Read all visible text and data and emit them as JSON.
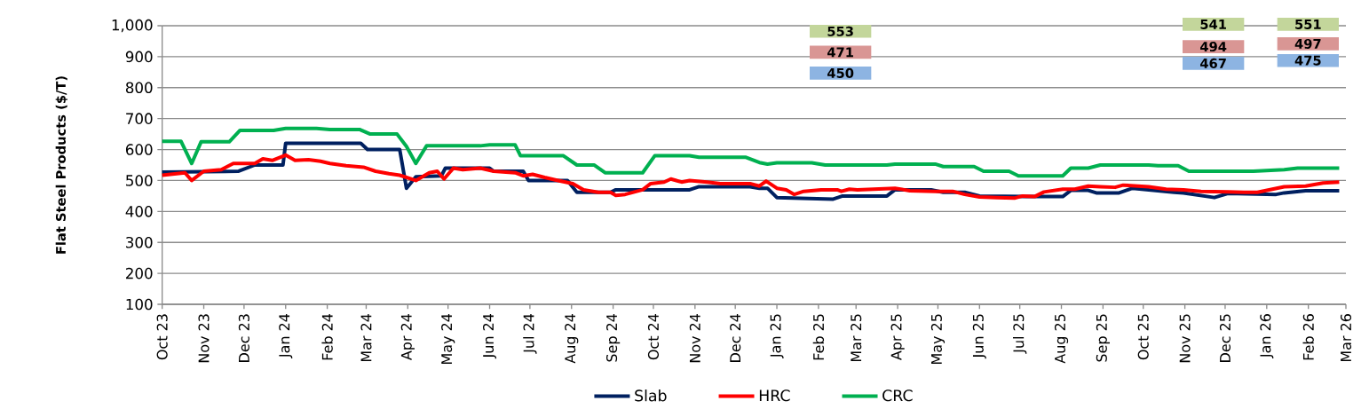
{
  "chart_data": {
    "type": "line",
    "ylabel": "Flat Steel Products ($/T)",
    "ylim": [
      100,
      1000
    ],
    "yticks": [
      100,
      200,
      300,
      400,
      500,
      600,
      700,
      800,
      900,
      {
        "value": 1000,
        "label": "1,000"
      }
    ],
    "xlim": [
      "2023-10-01",
      "2026-03-01"
    ],
    "xticks": [
      {
        "value": "2023-10-01",
        "label": "Oct 23"
      },
      {
        "value": "2023-11-01",
        "label": "Nov 23"
      },
      {
        "value": "2023-12-01",
        "label": "Dec 23"
      },
      {
        "value": "2024-01-01",
        "label": "Jan 24"
      },
      {
        "value": "2024-02-01",
        "label": "Feb 24"
      },
      {
        "value": "2024-03-01",
        "label": "Mar 24"
      },
      {
        "value": "2024-04-01",
        "label": "Apr 24"
      },
      {
        "value": "2024-05-01",
        "label": "May 24"
      },
      {
        "value": "2024-06-01",
        "label": "Jun 24"
      },
      {
        "value": "2024-07-01",
        "label": "Jul 24"
      },
      {
        "value": "2024-08-01",
        "label": "Aug 24"
      },
      {
        "value": "2024-09-01",
        "label": "Sep 24"
      },
      {
        "value": "2024-10-01",
        "label": "Oct 24"
      },
      {
        "value": "2024-11-01",
        "label": "Nov 24"
      },
      {
        "value": "2024-12-01",
        "label": "Dec 24"
      },
      {
        "value": "2025-01-01",
        "label": "Jan 25"
      },
      {
        "value": "2025-02-01",
        "label": "Feb 25"
      },
      {
        "value": "2025-03-01",
        "label": "Mar 25"
      },
      {
        "value": "2025-04-01",
        "label": "Apr 25"
      },
      {
        "value": "2025-05-01",
        "label": "May 25"
      },
      {
        "value": "2025-06-01",
        "label": "Jun 25"
      },
      {
        "value": "2025-07-01",
        "label": "Jul 25"
      },
      {
        "value": "2025-08-01",
        "label": "Aug 25"
      },
      {
        "value": "2025-09-01",
        "label": "Sep 25"
      },
      {
        "value": "2025-10-01",
        "label": "Oct 25"
      },
      {
        "value": "2025-11-01",
        "label": "Nov 25"
      },
      {
        "value": "2025-12-01",
        "label": "Dec 25"
      },
      {
        "value": "2026-01-01",
        "label": "Jan 26"
      },
      {
        "value": "2026-02-01",
        "label": "Feb 26"
      },
      {
        "value": "2026-03-01",
        "label": "Mar 26"
      }
    ],
    "grid": "y",
    "legend": "bottom",
    "marker": "none",
    "line_style": "solid",
    "series": [
      {
        "name": "Slab",
        "color": "#002060",
        "x": [
          "2023-10-01",
          "2023-11-27",
          "2023-12-09",
          "2023-12-30",
          "2024-01-01",
          "2024-02-26",
          "2024-03-02",
          "2024-03-26",
          "2024-03-31",
          "2024-04-07",
          "2024-04-26",
          "2024-04-29",
          "2024-06-01",
          "2024-06-04",
          "2024-06-26",
          "2024-06-30",
          "2024-07-29",
          "2024-08-05",
          "2024-08-30",
          "2024-09-03",
          "2024-10-28",
          "2024-11-04",
          "2024-12-12",
          "2024-12-19",
          "2024-12-25",
          "2025-01-01",
          "2025-02-12",
          "2025-02-19",
          "2025-03-24",
          "2025-03-30",
          "2025-04-26",
          "2025-05-05",
          "2025-05-21",
          "2025-06-01",
          "2025-07-06",
          "2025-08-02",
          "2025-08-08",
          "2025-08-21",
          "2025-08-27",
          "2025-09-13",
          "2025-09-23",
          "2025-10-24",
          "2025-10-31",
          "2025-11-23",
          "2025-12-03",
          "2026-01-08",
          "2026-01-14",
          "2026-01-30",
          "2026-02-24"
        ],
        "values": [
          527,
          530,
          550,
          550,
          620,
          620,
          600,
          600,
          475,
          512,
          515,
          540,
          540,
          530,
          530,
          500,
          500,
          462,
          462,
          470,
          470,
          480,
          480,
          475,
          475,
          445,
          440,
          450,
          450,
          470,
          470,
          462,
          462,
          450,
          448,
          448,
          468,
          468,
          460,
          460,
          475,
          462,
          460,
          445,
          458,
          455,
          460,
          467,
          467
        ]
      },
      {
        "name": "HRC",
        "color": "#ff0000",
        "x": [
          "2023-10-01",
          "2023-10-18",
          "2023-10-23",
          "2023-11-01",
          "2023-11-14",
          "2023-11-23",
          "2023-12-09",
          "2023-12-15",
          "2023-12-22",
          "2024-01-01",
          "2024-01-08",
          "2024-01-18",
          "2024-01-27",
          "2024-02-03",
          "2024-02-15",
          "2024-02-28",
          "2024-03-08",
          "2024-03-18",
          "2024-03-26",
          "2024-04-07",
          "2024-04-17",
          "2024-04-23",
          "2024-04-28",
          "2024-05-05",
          "2024-05-12",
          "2024-05-25",
          "2024-06-04",
          "2024-06-20",
          "2024-06-26",
          "2024-07-03",
          "2024-07-12",
          "2024-07-22",
          "2024-08-02",
          "2024-08-10",
          "2024-08-21",
          "2024-08-30",
          "2024-09-03",
          "2024-09-10",
          "2024-09-23",
          "2024-09-29",
          "2024-10-09",
          "2024-10-14",
          "2024-10-22",
          "2024-10-28",
          "2024-11-10",
          "2024-11-20",
          "2024-12-12",
          "2024-12-19",
          "2024-12-24",
          "2025-01-01",
          "2025-01-08",
          "2025-01-14",
          "2025-01-21",
          "2025-02-03",
          "2025-02-15",
          "2025-02-18",
          "2025-02-24",
          "2025-03-02",
          "2025-03-30",
          "2025-04-10",
          "2025-04-29",
          "2025-05-12",
          "2025-05-21",
          "2025-06-01",
          "2025-06-14",
          "2025-06-27",
          "2025-07-03",
          "2025-07-12",
          "2025-07-19",
          "2025-08-02",
          "2025-08-11",
          "2025-08-21",
          "2025-08-30",
          "2025-09-10",
          "2025-09-16",
          "2025-10-05",
          "2025-10-18",
          "2025-10-31",
          "2025-11-13",
          "2025-12-03",
          "2025-12-15",
          "2025-12-25",
          "2026-01-14",
          "2026-01-30",
          "2026-02-12",
          "2026-02-24"
        ],
        "values": [
          517,
          525,
          500,
          530,
          535,
          555,
          555,
          570,
          565,
          582,
          565,
          567,
          562,
          555,
          548,
          543,
          530,
          522,
          517,
          500,
          525,
          530,
          505,
          540,
          535,
          540,
          530,
          525,
          515,
          520,
          510,
          500,
          490,
          470,
          462,
          462,
          452,
          455,
          470,
          490,
          495,
          505,
          495,
          500,
          495,
          490,
          490,
          482,
          498,
          475,
          470,
          455,
          465,
          470,
          470,
          465,
          472,
          470,
          475,
          467,
          465,
          465,
          455,
          447,
          445,
          443,
          450,
          448,
          463,
          472,
          472,
          482,
          480,
          478,
          485,
          480,
          472,
          470,
          465,
          463,
          462,
          462,
          480,
          482,
          492,
          495
        ]
      },
      {
        "name": "CRC",
        "color": "#00b050",
        "x": [
          "2023-10-01",
          "2023-10-15",
          "2023-10-23",
          "2023-10-30",
          "2023-11-20",
          "2023-11-28",
          "2023-12-23",
          "2024-01-01",
          "2024-01-24",
          "2024-02-03",
          "2024-02-25",
          "2024-03-04",
          "2024-03-24",
          "2024-03-31",
          "2024-04-07",
          "2024-04-15",
          "2024-05-25",
          "2024-06-01",
          "2024-06-20",
          "2024-06-24",
          "2024-07-26",
          "2024-08-05",
          "2024-08-18",
          "2024-08-26",
          "2024-09-23",
          "2024-10-02",
          "2024-10-28",
          "2024-11-04",
          "2024-12-09",
          "2024-12-19",
          "2024-12-25",
          "2025-01-01",
          "2025-01-27",
          "2025-02-06",
          "2025-03-24",
          "2025-03-30",
          "2025-04-29",
          "2025-05-05",
          "2025-05-28",
          "2025-06-04",
          "2025-06-23",
          "2025-06-30",
          "2025-08-02",
          "2025-08-08",
          "2025-08-21",
          "2025-08-30",
          "2025-10-05",
          "2025-10-12",
          "2025-10-27",
          "2025-11-04",
          "2025-12-22",
          "2026-01-04",
          "2026-01-14",
          "2026-01-24",
          "2026-02-24"
        ],
        "values": [
          627,
          627,
          555,
          625,
          625,
          662,
          662,
          668,
          668,
          665,
          665,
          650,
          650,
          610,
          555,
          612,
          612,
          615,
          615,
          580,
          580,
          550,
          550,
          525,
          525,
          580,
          580,
          575,
          575,
          558,
          553,
          557,
          557,
          550,
          550,
          553,
          553,
          545,
          545,
          530,
          530,
          515,
          515,
          540,
          540,
          550,
          550,
          548,
          548,
          530,
          530,
          533,
          535,
          540,
          540
        ]
      }
    ],
    "annotations": [
      "553",
      "471",
      "450",
      "541",
      "494",
      "467",
      "551",
      "497",
      "475"
    ]
  }
}
